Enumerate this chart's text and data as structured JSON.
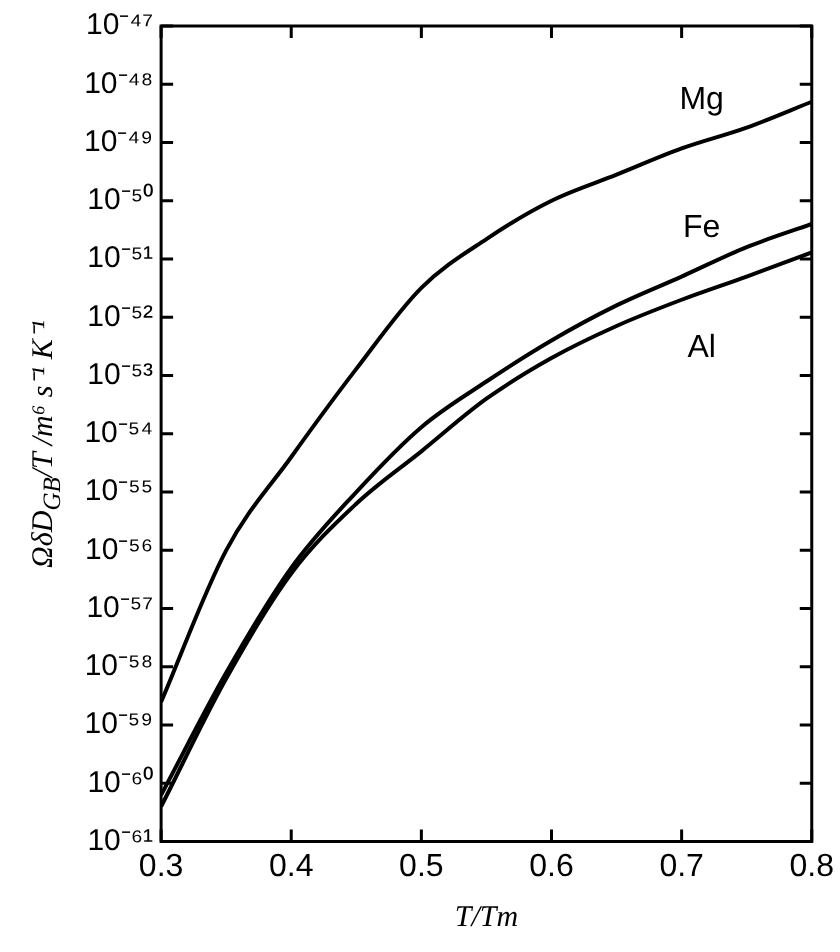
{
  "chart_data": {
    "type": "line",
    "xlabel": "T/Tm",
    "ylabel": "ΩδD$_{GB}$/T /m⁶ s⁻¹ K⁻¹",
    "x": [
      0.3,
      0.35,
      0.4,
      0.45,
      0.5,
      0.55,
      0.6,
      0.65,
      0.7,
      0.75,
      0.8
    ],
    "series": [
      {
        "name": "Mg",
        "color": "#000000",
        "values": [
          2.5e-59,
          1e-56,
          4e-55,
          1.3e-53,
          3.2e-52,
          2.2e-51,
          1e-50,
          2.8e-50,
          7.9e-50,
          1.8e-49,
          5e-49
        ]
      },
      {
        "name": "Fe",
        "color": "#000000",
        "values": [
          6.3e-61,
          7.9e-59,
          5e-57,
          1e-55,
          1.3e-54,
          7.9e-54,
          4e-53,
          1.6e-52,
          5e-52,
          1.6e-51,
          4e-51
        ]
      },
      {
        "name": "Al",
        "color": "#000000",
        "values": [
          4e-61,
          6.3e-59,
          4e-57,
          6.3e-56,
          5e-55,
          4e-54,
          2e-53,
          7.1e-53,
          2e-52,
          5e-52,
          1.3e-51
        ]
      }
    ],
    "log": "y",
    "xlim": [
      0.3,
      0.8
    ],
    "xticks": [
      0.3,
      0.4,
      0.5,
      0.6,
      0.7,
      0.8
    ],
    "ylim": [
      1e-61,
      1e-47
    ],
    "yticks": [
      {
        "value": 1e-61,
        "label": "10⁻⁶¹"
      },
      {
        "value": 1e-60,
        "label": "10⁻⁶⁰"
      },
      {
        "value": 1e-59,
        "label": "10⁻⁵⁹"
      },
      {
        "value": 1e-58,
        "label": "10⁻⁵⁸"
      },
      {
        "value": 1e-57,
        "label": "10⁻⁵⁷"
      },
      {
        "value": 1e-56,
        "label": "10⁻⁵⁶"
      },
      {
        "value": 1e-55,
        "label": "10⁻⁵⁵"
      },
      {
        "value": 1e-54,
        "label": "10⁻⁵⁴"
      },
      {
        "value": 1e-53,
        "label": "10⁻⁵³"
      },
      {
        "value": 1e-52,
        "label": "10⁻⁵²"
      },
      {
        "value": 1e-51,
        "label": "10⁻⁵¹"
      },
      {
        "value": 1e-50,
        "label": "10⁻⁵⁰"
      },
      {
        "value": 1e-49,
        "label": "10⁻⁴⁹"
      },
      {
        "value": 1e-48,
        "label": "10⁻⁴⁸"
      },
      {
        "value": 1e-47,
        "label": "10⁻⁴⁷"
      }
    ],
    "grid": false,
    "legend": "top right",
    "marker": "none",
    "line_style": "solid"
  }
}
